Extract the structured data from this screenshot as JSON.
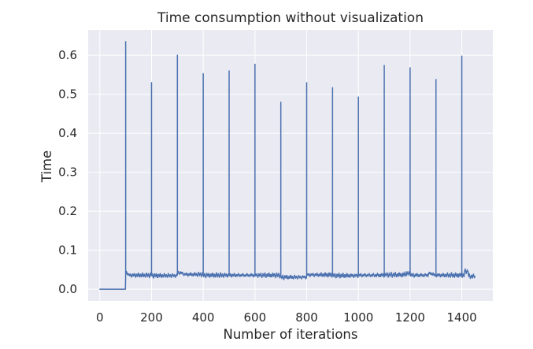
{
  "chart_data": {
    "type": "line",
    "title": "Time consumption without visualization",
    "xlabel": "Number of iterations",
    "ylabel": "Time",
    "xlim": [
      -45,
      1520
    ],
    "ylim": [
      -0.03,
      0.665
    ],
    "xticks": [
      0,
      200,
      400,
      600,
      800,
      1000,
      1200,
      1400
    ],
    "yticks": [
      0.0,
      0.1,
      0.2,
      0.3,
      0.4,
      0.5,
      0.6
    ],
    "x_tick_labels": [
      "0",
      "200",
      "400",
      "600",
      "800",
      "1000",
      "1200",
      "1400"
    ],
    "y_tick_labels": [
      "0.0",
      "0.1",
      "0.2",
      "0.3",
      "0.4",
      "0.5",
      "0.6"
    ],
    "grid": true,
    "legend": "none",
    "style": {
      "background": "#EAEAF2",
      "grid_color": "#FFFFFF",
      "line_color": "#4C72B0"
    },
    "series": [
      {
        "baseline_segments": [
          {
            "x_start": 0,
            "x_end": 99,
            "y": 0.0
          },
          {
            "x_start": 100,
            "x_end": 199,
            "y": 0.036
          },
          {
            "x_start": 200,
            "x_end": 299,
            "y": 0.035
          },
          {
            "x_start": 300,
            "x_end": 399,
            "y": 0.038
          },
          {
            "x_start": 400,
            "x_end": 499,
            "y": 0.036
          },
          {
            "x_start": 500,
            "x_end": 599,
            "y": 0.036
          },
          {
            "x_start": 600,
            "x_end": 699,
            "y": 0.036
          },
          {
            "x_start": 700,
            "x_end": 799,
            "y": 0.031
          },
          {
            "x_start": 800,
            "x_end": 899,
            "y": 0.037
          },
          {
            "x_start": 900,
            "x_end": 999,
            "y": 0.035
          },
          {
            "x_start": 1000,
            "x_end": 1099,
            "y": 0.036
          },
          {
            "x_start": 1100,
            "x_end": 1199,
            "y": 0.037
          },
          {
            "x_start": 1200,
            "x_end": 1299,
            "y": 0.036
          },
          {
            "x_start": 1300,
            "x_end": 1399,
            "y": 0.036
          },
          {
            "x_start": 1400,
            "x_end": 1450,
            "y": 0.036
          }
        ],
        "spikes": [
          {
            "x": 100,
            "y": 0.635
          },
          {
            "x": 200,
            "y": 0.53
          },
          {
            "x": 300,
            "y": 0.6
          },
          {
            "x": 400,
            "y": 0.553
          },
          {
            "x": 500,
            "y": 0.56
          },
          {
            "x": 600,
            "y": 0.577
          },
          {
            "x": 700,
            "y": 0.48
          },
          {
            "x": 800,
            "y": 0.53
          },
          {
            "x": 900,
            "y": 0.517
          },
          {
            "x": 1000,
            "y": 0.493
          },
          {
            "x": 1100,
            "y": 0.574
          },
          {
            "x": 1200,
            "y": 0.568
          },
          {
            "x": 1300,
            "y": 0.538
          },
          {
            "x": 1400,
            "y": 0.598
          }
        ]
      }
    ]
  }
}
